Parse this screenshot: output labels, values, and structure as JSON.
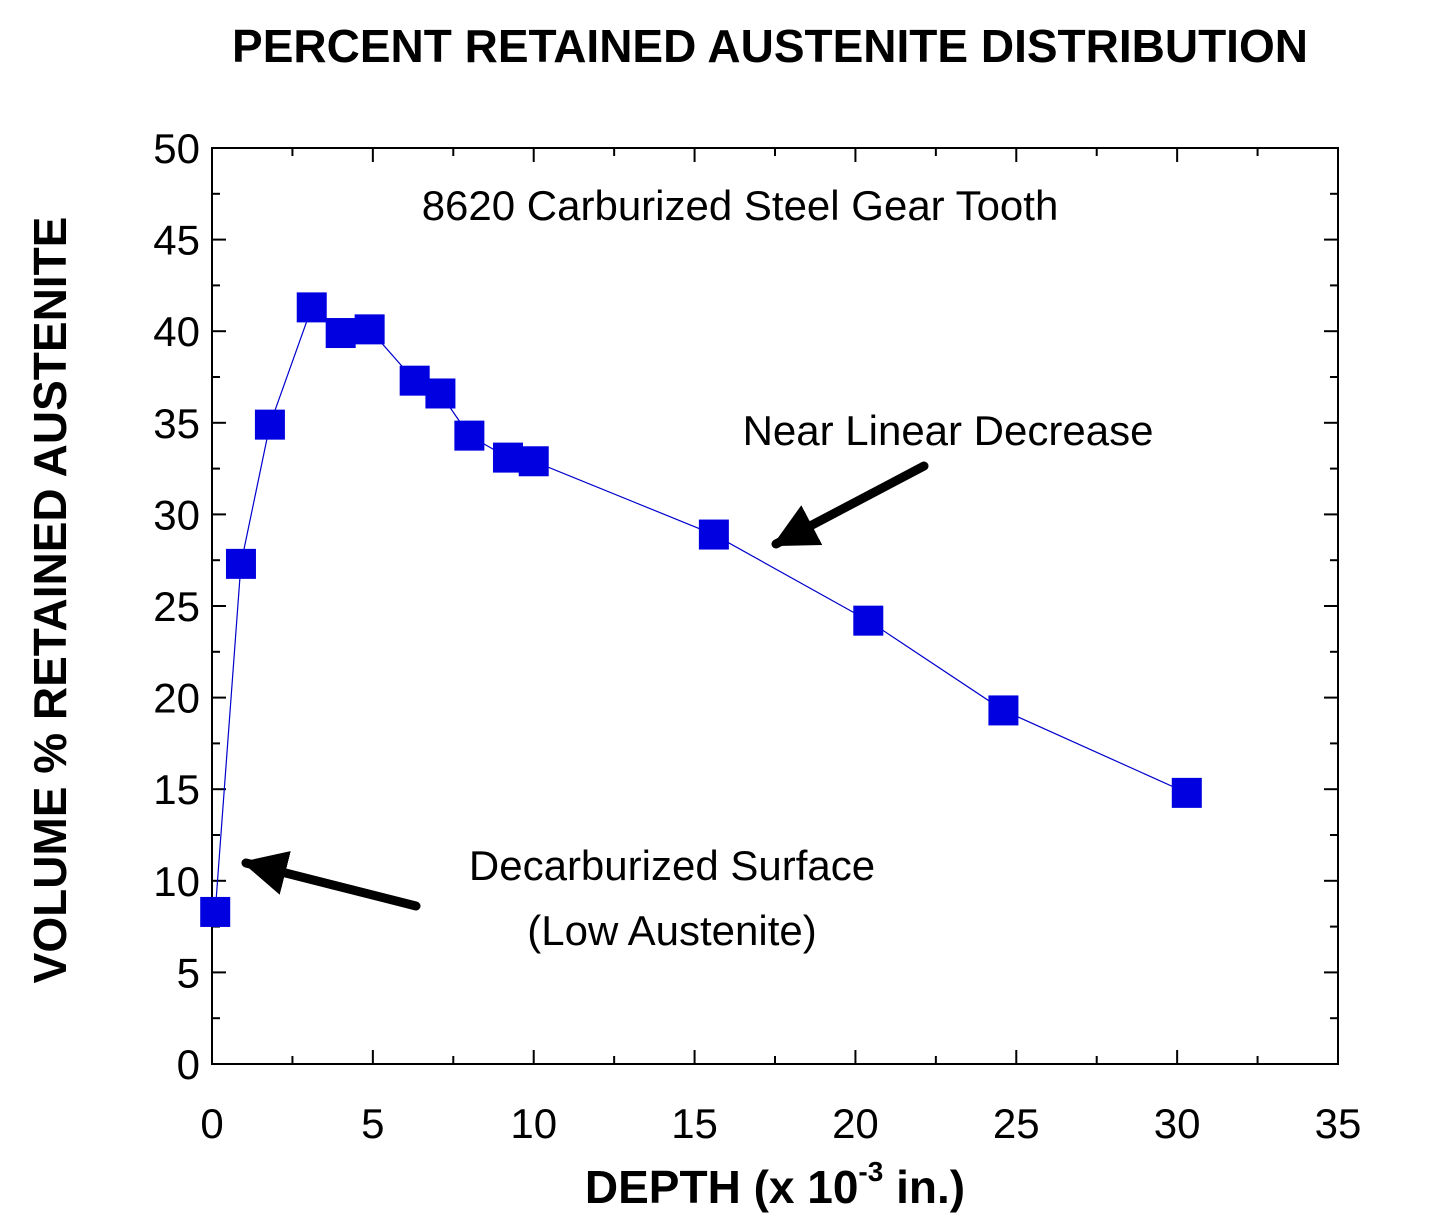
{
  "chart_data": {
    "type": "line",
    "title": "PERCENT RETAINED AUSTENITE DISTRIBUTION",
    "xlabel": "DEPTH (x 10",
    "xlabel_exponent": "-3",
    "xlabel_suffix": " in.)",
    "ylabel": "VOLUME % RETAINED AUSTENITE",
    "xlim": [
      0,
      35
    ],
    "ylim": [
      0,
      50
    ],
    "x_ticks": [
      "0",
      "5",
      "10",
      "15",
      "20",
      "25",
      "30",
      "35"
    ],
    "y_ticks": [
      "0",
      "5",
      "10",
      "15",
      "20",
      "25",
      "30",
      "35",
      "40",
      "45",
      "50"
    ],
    "grid": false,
    "marker_color": "#0000e0",
    "line_color": "#0000cc",
    "series": [
      {
        "name": "8620 Carburized Steel Gear Tooth",
        "x": [
          0.1,
          0.9,
          1.8,
          3.1,
          4.0,
          4.9,
          6.3,
          7.1,
          8.0,
          9.2,
          10.0,
          15.6,
          20.4,
          24.6,
          30.3
        ],
        "y": [
          8.3,
          27.3,
          34.9,
          41.3,
          39.9,
          40.1,
          37.3,
          36.6,
          34.3,
          33.1,
          32.9,
          28.9,
          24.2,
          19.3,
          14.8
        ]
      }
    ],
    "annotations": {
      "series_label": "8620 Carburized Steel Gear Tooth",
      "linear_note": "Near Linear Decrease",
      "surface_note_line1": "Decarburized Surface",
      "surface_note_line2": "(Low Austenite)"
    }
  }
}
